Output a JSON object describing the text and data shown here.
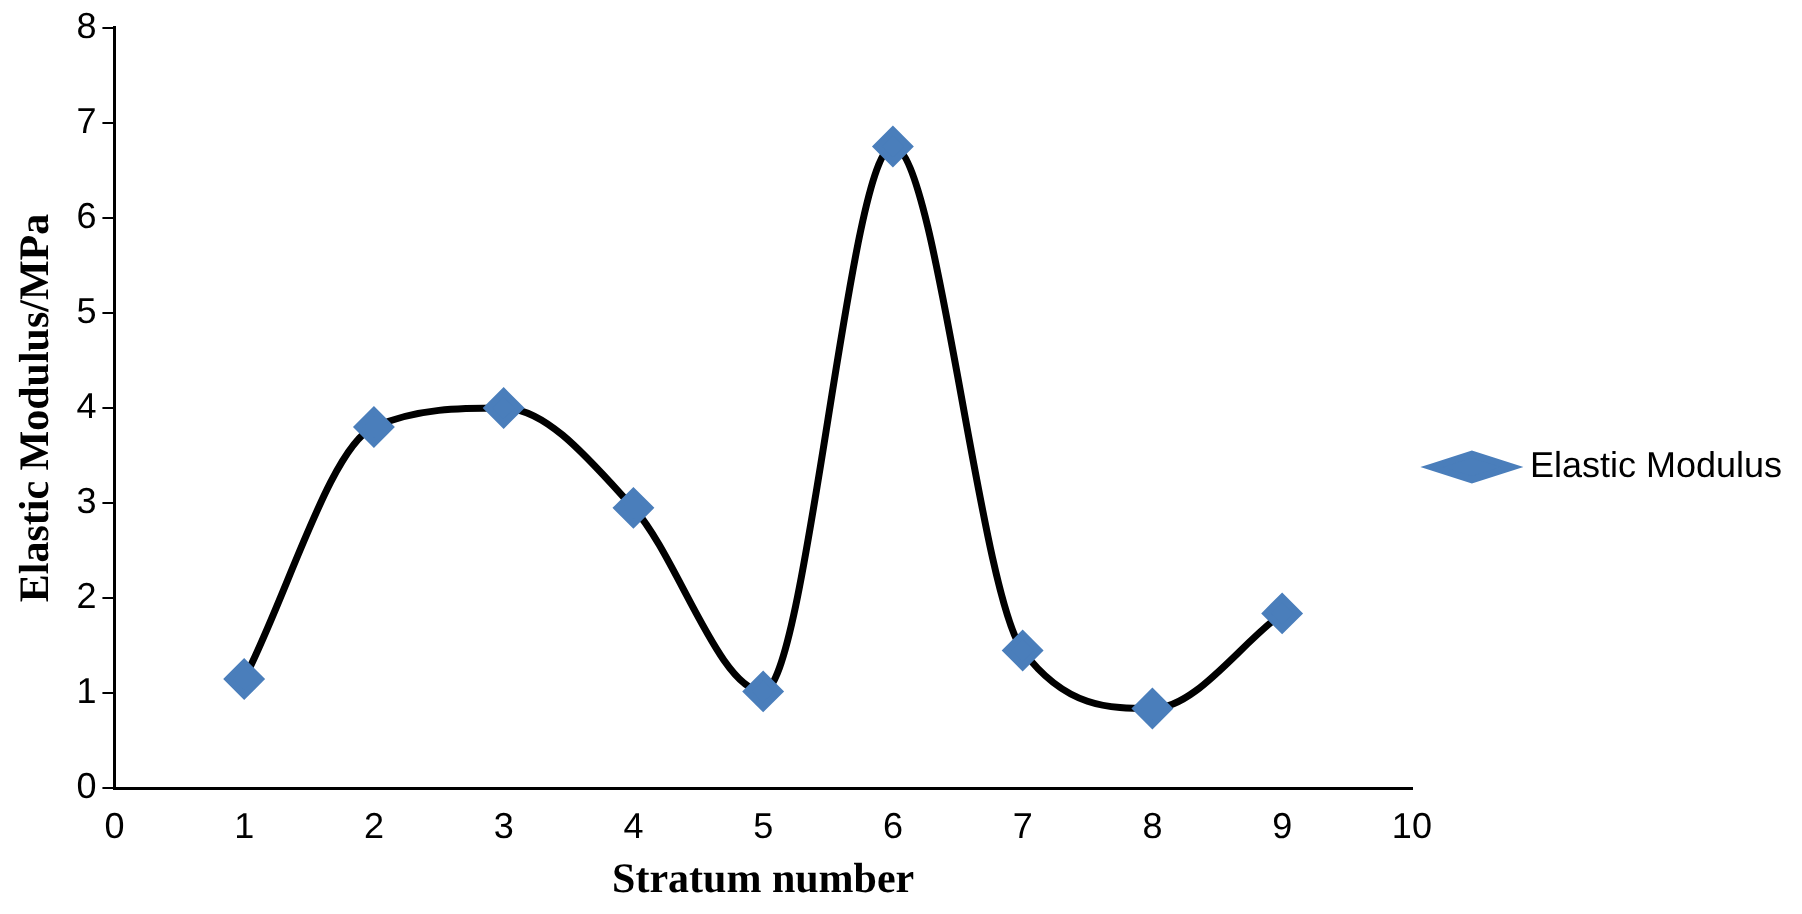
{
  "chart_data": {
    "type": "line",
    "xlabel": "Stratum number",
    "ylabel": "Elastic Modulus/MPa",
    "x": [
      1,
      2,
      3,
      4,
      5,
      6,
      7,
      8,
      9
    ],
    "series": [
      {
        "name": "Elastic Modulus",
        "color": "#4a7ebb",
        "values": [
          1.15,
          3.8,
          4.0,
          2.95,
          1.02,
          6.75,
          1.45,
          0.84,
          1.84
        ]
      }
    ],
    "xlim": [
      0,
      10
    ],
    "xticks": [
      0,
      1,
      2,
      3,
      4,
      5,
      6,
      7,
      8,
      9,
      10
    ],
    "ylim": [
      0,
      8
    ],
    "yticks": [
      0,
      1,
      2,
      3,
      4,
      5,
      6,
      7,
      8
    ],
    "grid": false,
    "legend": "right",
    "marker": "diamond",
    "line_style": "solid"
  }
}
